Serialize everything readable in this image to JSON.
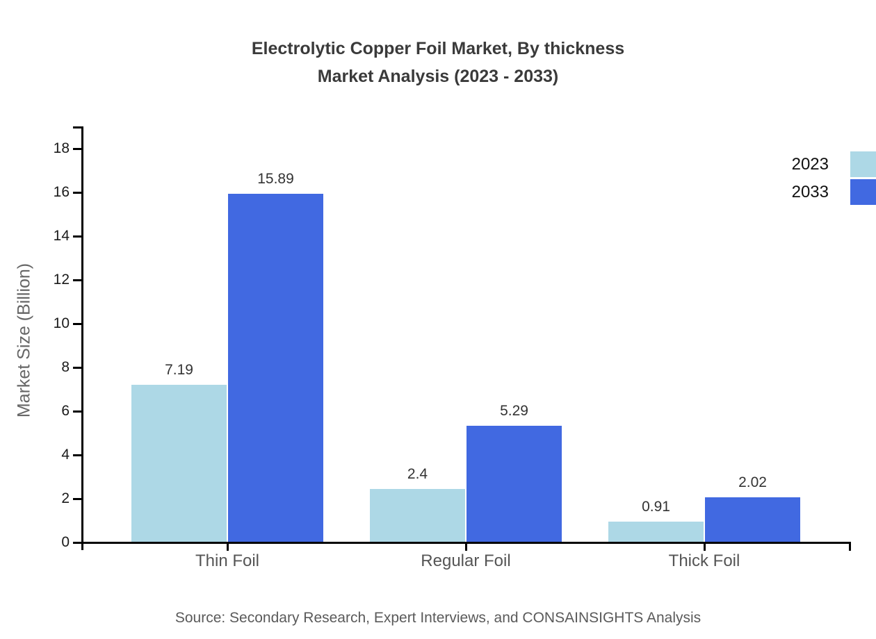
{
  "title": {
    "line1": "Electrolytic Copper Foil Market, By thickness",
    "line2": "Market Analysis (2023 - 2033)"
  },
  "chart_data": {
    "type": "bar",
    "title": "Electrolytic Copper Foil Market, By thickness Market Analysis (2023 - 2033)",
    "categories": [
      "Thin Foil",
      "Regular Foil",
      "Thick Foil"
    ],
    "series": [
      {
        "name": "2023",
        "color": "#ADD8E6",
        "values": [
          7.19,
          2.4,
          0.91
        ]
      },
      {
        "name": "2033",
        "color": "#4169E1",
        "values": [
          15.89,
          5.29,
          2.02
        ]
      }
    ],
    "value_labels": [
      [
        "7.19",
        "2.4",
        "0.91"
      ],
      [
        "15.89",
        "5.29",
        "2.02"
      ]
    ],
    "xlabel": "",
    "ylabel": "Market Size (Billion)",
    "ylim": [
      0,
      19
    ],
    "yticks": [
      0,
      2,
      4,
      6,
      8,
      10,
      12,
      14,
      16,
      18
    ],
    "grid": false,
    "legend_position": "top-right"
  },
  "footer": {
    "source": "Source: Secondary Research, Expert Interviews, and CONSAINSIGHTS Analysis"
  }
}
